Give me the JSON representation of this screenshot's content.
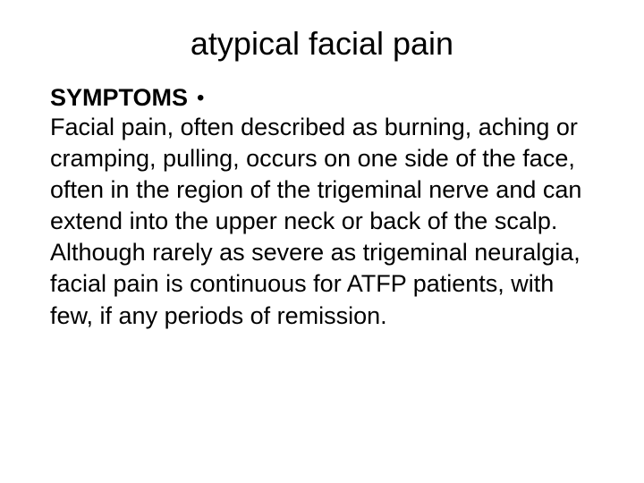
{
  "slide": {
    "title": "atypical facial pain",
    "section_header": "SYMPTOMS",
    "bullet_marker": "•",
    "body_text": "Facial pain, often described as burning, aching or cramping, pulling, occurs on one side of the face, often in the region of the trigeminal nerve and can extend into the upper neck or back of the scalp. Although rarely as severe as trigeminal neuralgia, facial pain is continuous for ATFP patients, with few, if any periods of remission."
  },
  "colors": {
    "background": "#ffffff",
    "text": "#000000"
  },
  "typography": {
    "title_fontsize": 36,
    "header_fontsize": 27,
    "body_fontsize": 27,
    "font_family": "Arial"
  }
}
